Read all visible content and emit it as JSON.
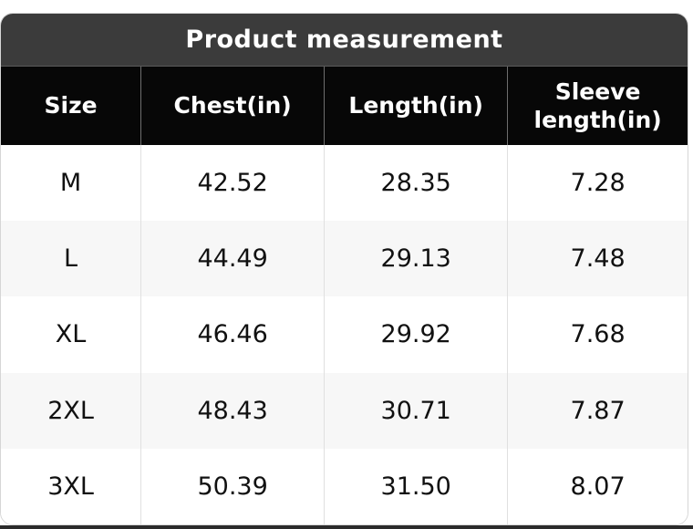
{
  "card": {
    "title": "Product measurement"
  },
  "colors": {
    "title_bar": "#3b3b3b",
    "header_row": "#070707",
    "header_divider": "#6e6e6e",
    "alt_row": "#f7f7f7",
    "body_divider": "#e0e0e0",
    "card_border": "#d6d6d6",
    "bottom_strip": "#2b2b2b"
  },
  "chart_data": {
    "type": "table",
    "title": "Product measurement",
    "columns": [
      "Size",
      "Chest(in)",
      "Length(in)",
      "Sleeve length(in)"
    ],
    "rows": [
      [
        "M",
        "42.52",
        "28.35",
        "7.28"
      ],
      [
        "L",
        "44.49",
        "29.13",
        "7.48"
      ],
      [
        "XL",
        "46.46",
        "29.92",
        "7.68"
      ],
      [
        "2XL",
        "48.43",
        "30.71",
        "7.87"
      ],
      [
        "3XL",
        "50.39",
        "31.50",
        "8.07"
      ]
    ]
  }
}
